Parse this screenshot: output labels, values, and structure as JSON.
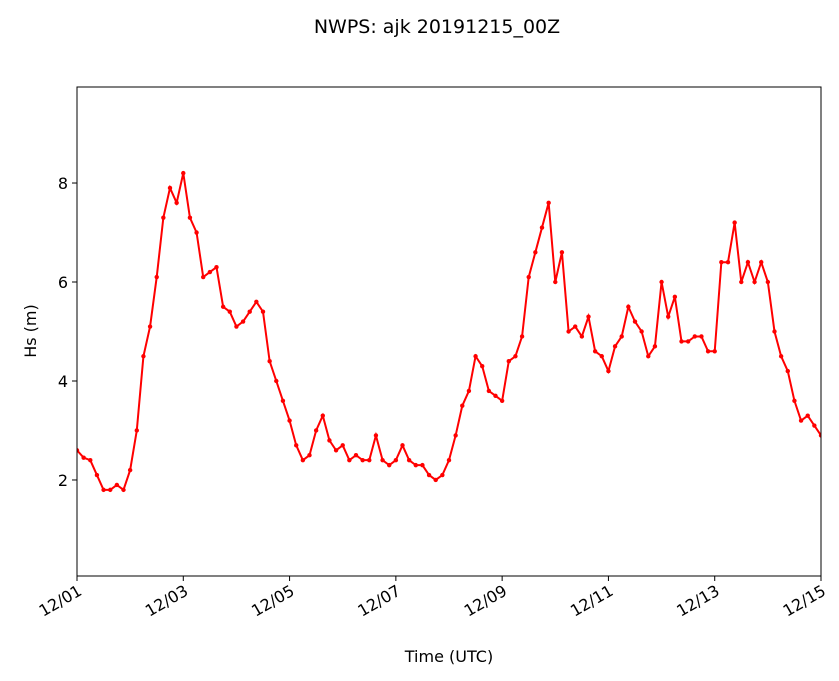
{
  "chart_data": {
    "type": "line",
    "title": "NWPS: ajk 20191215_00Z",
    "x_label": "Time (UTC)",
    "y_label": "Hs (m)",
    "xlim": [
      0,
      14
    ],
    "xticks": [
      {
        "value": 0,
        "label": "12/01"
      },
      {
        "value": 2,
        "label": "12/03"
      },
      {
        "value": 4,
        "label": "12/05"
      },
      {
        "value": 6,
        "label": "12/07"
      },
      {
        "value": 8,
        "label": "12/09"
      },
      {
        "value": 10,
        "label": "12/11"
      },
      {
        "value": 12,
        "label": "12/13"
      },
      {
        "value": 14,
        "label": "12/15"
      }
    ],
    "ylim": [
      0.06,
      9.94
    ],
    "yticks": [
      2,
      4,
      6,
      8
    ],
    "grid": false,
    "x": [
      0,
      0.125,
      0.25,
      0.375,
      0.5,
      0.625,
      0.75,
      0.875,
      1,
      1.125,
      1.25,
      1.375,
      1.5,
      1.625,
      1.75,
      1.875,
      2,
      2.125,
      2.25,
      2.375,
      2.5,
      2.625,
      2.75,
      2.875,
      3,
      3.125,
      3.25,
      3.375,
      3.5,
      3.625,
      3.75,
      3.875,
      4,
      4.125,
      4.25,
      4.375,
      4.5,
      4.625,
      4.75,
      4.875,
      5,
      5.125,
      5.25,
      5.375,
      5.5,
      5.625,
      5.75,
      5.875,
      6,
      6.125,
      6.25,
      6.375,
      6.5,
      6.625,
      6.75,
      6.875,
      7,
      7.125,
      7.25,
      7.375,
      7.5,
      7.625,
      7.75,
      7.875,
      8,
      8.125,
      8.25,
      8.375,
      8.5,
      8.625,
      8.75,
      8.875,
      9,
      9.125,
      9.25,
      9.375,
      9.5,
      9.625,
      9.75,
      9.875,
      10,
      10.125,
      10.25,
      10.375,
      10.5,
      10.625,
      10.75,
      10.875,
      11,
      11.125,
      11.25,
      11.375,
      11.5,
      11.625,
      11.75,
      11.875,
      12,
      12.125,
      12.25,
      12.375,
      12.5,
      12.625,
      12.75,
      12.875,
      13,
      13.125,
      13.25,
      13.375,
      13.5,
      13.625,
      13.75,
      13.875,
      14
    ],
    "series": [
      {
        "name": "Hs",
        "color": "#ff0000",
        "values": [
          2.6,
          2.45,
          2.4,
          2.1,
          1.8,
          1.8,
          1.9,
          1.8,
          2.2,
          3.0,
          4.5,
          5.1,
          6.1,
          7.3,
          7.9,
          7.6,
          8.2,
          7.3,
          7.0,
          6.1,
          6.2,
          6.3,
          5.5,
          5.4,
          5.1,
          5.2,
          5.4,
          5.6,
          5.4,
          4.4,
          4.0,
          3.6,
          3.2,
          2.7,
          2.4,
          2.5,
          3.0,
          3.3,
          2.8,
          2.6,
          2.7,
          2.4,
          2.5,
          2.4,
          2.4,
          2.9,
          2.4,
          2.3,
          2.4,
          2.7,
          2.4,
          2.3,
          2.3,
          2.1,
          2.0,
          2.1,
          2.4,
          2.9,
          3.5,
          3.8,
          4.5,
          4.3,
          3.8,
          3.7,
          3.6,
          4.4,
          4.5,
          4.9,
          6.1,
          6.6,
          7.1,
          7.6,
          6.0,
          6.6,
          5.0,
          5.1,
          4.9,
          5.3,
          4.6,
          4.5,
          4.2,
          4.7,
          4.9,
          5.5,
          5.2,
          5.0,
          4.5,
          4.7,
          6.0,
          5.3,
          5.7,
          4.8,
          4.8,
          4.9,
          4.9,
          4.6,
          4.6,
          6.4,
          6.4,
          7.2,
          6.0,
          6.4,
          6.0,
          6.4,
          6.0,
          5.0,
          4.5,
          4.2,
          3.6,
          3.2,
          3.3,
          3.1,
          2.9
        ]
      }
    ]
  }
}
